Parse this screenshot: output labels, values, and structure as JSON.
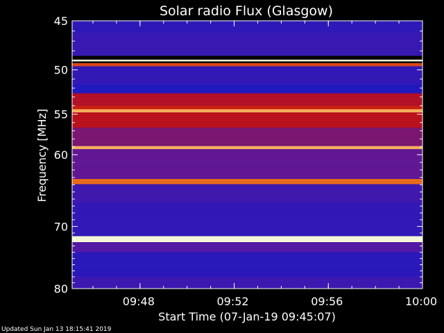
{
  "chart_data": {
    "type": "heatmap",
    "title": "Solar radio Flux (Glasgow)",
    "ylabel": "Frequency [MHz]",
    "xlabel": "Start Time (07-Jan-19 09:45:07)",
    "footer": "Updated Sun Jan 13 18:15:41 2019",
    "x_ticks": [
      "09:48",
      "09:52",
      "09:56",
      "10:00"
    ],
    "x_tick_minutes": [
      2.883,
      6.883,
      10.883,
      14.883
    ],
    "xlim_minutes": [
      0,
      14.883
    ],
    "y_ticks": [
      45,
      50,
      55,
      60,
      70,
      80
    ],
    "ylim_mhz": [
      45,
      80
    ],
    "yscale": "log",
    "colors": {
      "background": "#000000",
      "low": "#1a1acc",
      "mid": "#5a1aa8",
      "high": "#cc1010",
      "peak": "#ff9020",
      "max": "#ffffe0"
    },
    "bands": [
      {
        "from": 45,
        "to": 46.2,
        "level": 0.12
      },
      {
        "from": 46.2,
        "to": 48.5,
        "level": 0.18
      },
      {
        "from": 48.5,
        "to": 48.9,
        "level": 0.0
      },
      {
        "from": 48.9,
        "to": 49.1,
        "level": 1.0
      },
      {
        "from": 49.1,
        "to": 49.3,
        "level": 0.0
      },
      {
        "from": 49.3,
        "to": 49.6,
        "level": 0.75
      },
      {
        "from": 49.6,
        "to": 51.6,
        "level": 0.15
      },
      {
        "from": 51.6,
        "to": 52.6,
        "level": 0.05
      },
      {
        "from": 52.6,
        "to": 54.0,
        "level": 0.6
      },
      {
        "from": 54.0,
        "to": 54.4,
        "level": 0.68
      },
      {
        "from": 54.4,
        "to": 54.8,
        "level": 0.92
      },
      {
        "from": 54.8,
        "to": 56.6,
        "level": 0.62
      },
      {
        "from": 56.6,
        "to": 58.9,
        "level": 0.45
      },
      {
        "from": 58.9,
        "to": 59.3,
        "level": 0.92
      },
      {
        "from": 59.3,
        "to": 63.2,
        "level": 0.38
      },
      {
        "from": 63.2,
        "to": 63.9,
        "level": 0.82
      },
      {
        "from": 63.9,
        "to": 66.5,
        "level": 0.22
      },
      {
        "from": 66.5,
        "to": 71.5,
        "level": 0.14
      },
      {
        "from": 71.5,
        "to": 72.4,
        "level": 1.0
      },
      {
        "from": 72.4,
        "to": 74.0,
        "level": 0.32
      },
      {
        "from": 74.0,
        "to": 78.0,
        "level": 0.1
      },
      {
        "from": 78.0,
        "to": 80.0,
        "level": 0.2
      }
    ]
  }
}
